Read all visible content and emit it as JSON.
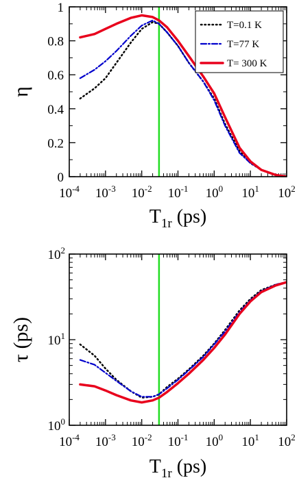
{
  "chart_data": [
    {
      "type": "line",
      "xlabel_main": "T",
      "xlabel_sub": "1r",
      "xlabel_unit": " (ps)",
      "ylabel": "η",
      "xscale": "log",
      "yscale": "linear",
      "xlim": [
        0.0001,
        100
      ],
      "ylim": [
        0,
        1
      ],
      "x_tick_labels": [
        {
          "base": "10",
          "exp": "-4"
        },
        {
          "base": "10",
          "exp": "-3"
        },
        {
          "base": "10",
          "exp": "-2"
        },
        {
          "base": "10",
          "exp": "-1"
        },
        {
          "base": "10",
          "exp": "0"
        },
        {
          "base": "10",
          "exp": "1"
        },
        {
          "base": "10",
          "exp": "2"
        }
      ],
      "y_tick_labels": [
        "0",
        "0.2",
        "0.4",
        "0.6",
        "0.8",
        "1"
      ],
      "y_tick_values": [
        0,
        0.2,
        0.4,
        0.6,
        0.8,
        1
      ],
      "vline_x": 0.03,
      "legend_position": "top-right",
      "series": [
        {
          "name": "T=0.1 K",
          "color": "#000000",
          "style": "dotted",
          "x": [
            0.0002,
            0.0005,
            0.001,
            0.002,
            0.005,
            0.01,
            0.02,
            0.03,
            0.05,
            0.1,
            0.2,
            0.5,
            1,
            2,
            5,
            10,
            20,
            50,
            100
          ],
          "y": [
            0.46,
            0.52,
            0.58,
            0.67,
            0.79,
            0.87,
            0.91,
            0.9,
            0.85,
            0.77,
            0.67,
            0.56,
            0.46,
            0.31,
            0.15,
            0.08,
            0.04,
            0.01,
            0.0
          ]
        },
        {
          "name": "T=77 K",
          "color": "#0000cc",
          "style": "dashdot",
          "x": [
            0.0002,
            0.0005,
            0.001,
            0.002,
            0.005,
            0.01,
            0.02,
            0.03,
            0.05,
            0.1,
            0.2,
            0.5,
            1,
            2,
            5,
            10,
            20,
            50,
            100
          ],
          "y": [
            0.58,
            0.63,
            0.68,
            0.74,
            0.83,
            0.89,
            0.92,
            0.9,
            0.85,
            0.77,
            0.67,
            0.56,
            0.45,
            0.3,
            0.14,
            0.08,
            0.04,
            0.01,
            0.0
          ]
        },
        {
          "name": "T= 300 K",
          "color": "#e8001c",
          "style": "solid",
          "x": [
            0.0002,
            0.0005,
            0.001,
            0.002,
            0.005,
            0.01,
            0.02,
            0.03,
            0.05,
            0.1,
            0.2,
            0.5,
            1,
            2,
            5,
            10,
            20,
            50,
            100
          ],
          "y": [
            0.82,
            0.84,
            0.87,
            0.9,
            0.935,
            0.95,
            0.94,
            0.92,
            0.88,
            0.8,
            0.71,
            0.59,
            0.49,
            0.35,
            0.17,
            0.09,
            0.04,
            0.01,
            0.0
          ]
        }
      ]
    },
    {
      "type": "line",
      "xlabel_main": "T",
      "xlabel_sub": "1r",
      "xlabel_unit": " (ps)",
      "ylabel": "τ (ps)",
      "xscale": "log",
      "yscale": "log",
      "xlim": [
        0.0001,
        100
      ],
      "ylim": [
        1,
        100
      ],
      "x_tick_labels": [
        {
          "base": "10",
          "exp": "-4"
        },
        {
          "base": "10",
          "exp": "-3"
        },
        {
          "base": "10",
          "exp": "-2"
        },
        {
          "base": "10",
          "exp": "-1"
        },
        {
          "base": "10",
          "exp": "0"
        },
        {
          "base": "10",
          "exp": "1"
        },
        {
          "base": "10",
          "exp": "2"
        }
      ],
      "y_tick_labels": [
        {
          "base": "10",
          "exp": "0"
        },
        {
          "base": "10",
          "exp": "1"
        },
        {
          "base": "10",
          "exp": "2"
        }
      ],
      "vline_x": 0.03,
      "series": [
        {
          "name": "T=0.1 K",
          "color": "#000000",
          "style": "dotted",
          "x": [
            0.0002,
            0.0005,
            0.001,
            0.002,
            0.005,
            0.01,
            0.02,
            0.03,
            0.05,
            0.1,
            0.2,
            0.5,
            1,
            2,
            5,
            10,
            20,
            50,
            100
          ],
          "y": [
            8.8,
            6.5,
            4.6,
            3.4,
            2.5,
            2.1,
            2.15,
            2.3,
            2.8,
            3.5,
            4.5,
            6.5,
            9.0,
            13,
            22,
            30,
            38,
            44,
            47
          ]
        },
        {
          "name": "T=77 K",
          "color": "#0000cc",
          "style": "dashdot",
          "x": [
            0.0002,
            0.0005,
            0.001,
            0.002,
            0.005,
            0.01,
            0.02,
            0.03,
            0.05,
            0.1,
            0.2,
            0.5,
            1,
            2,
            5,
            10,
            20,
            50,
            100
          ],
          "y": [
            5.8,
            5.1,
            4.1,
            3.3,
            2.5,
            2.15,
            2.15,
            2.3,
            2.7,
            3.4,
            4.4,
            6.3,
            8.8,
            12.5,
            21,
            29,
            37,
            44,
            47
          ]
        },
        {
          "name": "T= 300 K",
          "color": "#e8001c",
          "style": "solid",
          "x": [
            0.0002,
            0.0005,
            0.001,
            0.002,
            0.005,
            0.01,
            0.02,
            0.03,
            0.05,
            0.1,
            0.2,
            0.5,
            1,
            2,
            5,
            10,
            20,
            50,
            100
          ],
          "y": [
            3.0,
            2.85,
            2.55,
            2.25,
            1.95,
            1.85,
            1.95,
            2.1,
            2.45,
            3.1,
            4.0,
            5.8,
            8.0,
            11.5,
            20,
            28,
            36,
            43,
            47
          ]
        }
      ]
    }
  ]
}
